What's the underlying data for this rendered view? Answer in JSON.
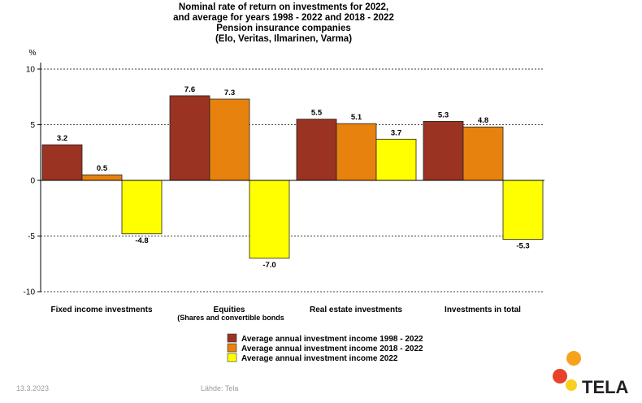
{
  "chart_data": {
    "type": "bar",
    "title_lines": [
      "Nominal rate of return on investments for  2022,",
      "and average for years 1998 - 2022 and 2018 - 2022",
      "Pension insurance companies",
      "(Elo, Veritas, Ilmarinen, Varma)"
    ],
    "ylabel": "%",
    "ylim": [
      -10,
      10
    ],
    "yticks": [
      -10,
      -5,
      0,
      5,
      10
    ],
    "grid": true,
    "categories": [
      "Fixed income investments",
      "Equities",
      "Real estate investments",
      "Investments  in total"
    ],
    "category_sublabels": [
      "",
      "(Shares and  convertible bonds",
      "",
      ""
    ],
    "series": [
      {
        "name": "Average annual investment income 1998 - 2022",
        "color": "#9b3322",
        "values": [
          3.2,
          7.6,
          5.5,
          5.3
        ]
      },
      {
        "name": "Average annual investment income 2018 - 2022",
        "color": "#e8820f",
        "values": [
          0.5,
          7.3,
          5.1,
          4.8
        ]
      },
      {
        "name": "Average annual investment income 2022",
        "color": "#ffff00",
        "values": [
          -4.8,
          -7.0,
          3.7,
          -5.3
        ]
      }
    ],
    "legend_position": "bottom-center"
  },
  "footer": {
    "date": "13.3.2023",
    "source": "Lähde: Tela"
  },
  "brand": {
    "name": "TELA",
    "colors": [
      "#f7a21b",
      "#e8422b",
      "#f7cf1e"
    ]
  }
}
